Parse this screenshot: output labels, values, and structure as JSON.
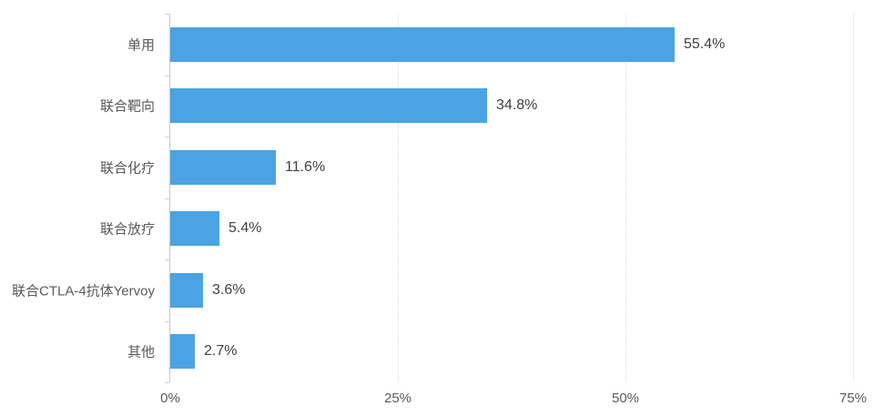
{
  "chart_data": {
    "type": "bar",
    "orientation": "horizontal",
    "title": "",
    "xlabel": "",
    "ylabel": "",
    "categories": [
      "单用",
      "联合靶向",
      "联合化疗",
      "联合放疗",
      "联合CTLA-4抗体Yervoy",
      "其他"
    ],
    "values": [
      55.4,
      34.8,
      11.6,
      5.4,
      3.6,
      2.7
    ],
    "value_labels": [
      "55.4%",
      "34.8%",
      "11.6%",
      "5.4%",
      "3.6%",
      "2.7%"
    ],
    "xlim": [
      0,
      75
    ],
    "x_ticks": [
      "0%",
      "25%",
      "50%",
      "75%"
    ],
    "x_tick_values": [
      0,
      25,
      50,
      75
    ],
    "grid": "vertical dotted gridlines at ticks",
    "legend": "none",
    "colors": {
      "bar": "#4BA3E3",
      "category_label": "#595959",
      "value_label": "#404040",
      "axis_line": "#c9c9c9",
      "gridline": "#d9d9d9"
    }
  }
}
